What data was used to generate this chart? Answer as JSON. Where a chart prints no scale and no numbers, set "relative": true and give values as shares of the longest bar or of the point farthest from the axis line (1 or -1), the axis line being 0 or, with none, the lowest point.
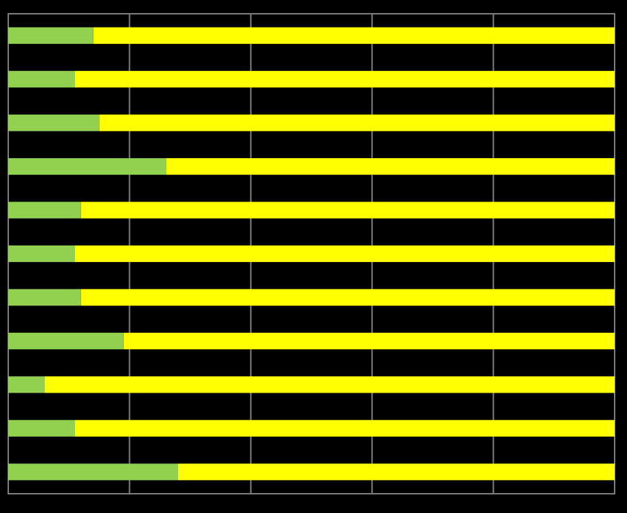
{
  "chart_data": {
    "type": "bar",
    "orientation": "horizontal",
    "stacked": true,
    "relative": true,
    "grid": "x",
    "categories": [
      null,
      null,
      null,
      null,
      null,
      null,
      null,
      null,
      null,
      null,
      null
    ],
    "series": [
      {
        "color": "#92d050",
        "values": [
          0.14,
          0.11,
          0.15,
          0.26,
          0.12,
          0.11,
          0.12,
          0.19,
          0.06,
          0.11,
          0.28
        ]
      },
      {
        "color": "#ffff00",
        "values": [
          0.86,
          0.89,
          0.85,
          0.74,
          0.88,
          0.89,
          0.88,
          0.81,
          0.94,
          0.89,
          0.72
        ]
      }
    ]
  }
}
